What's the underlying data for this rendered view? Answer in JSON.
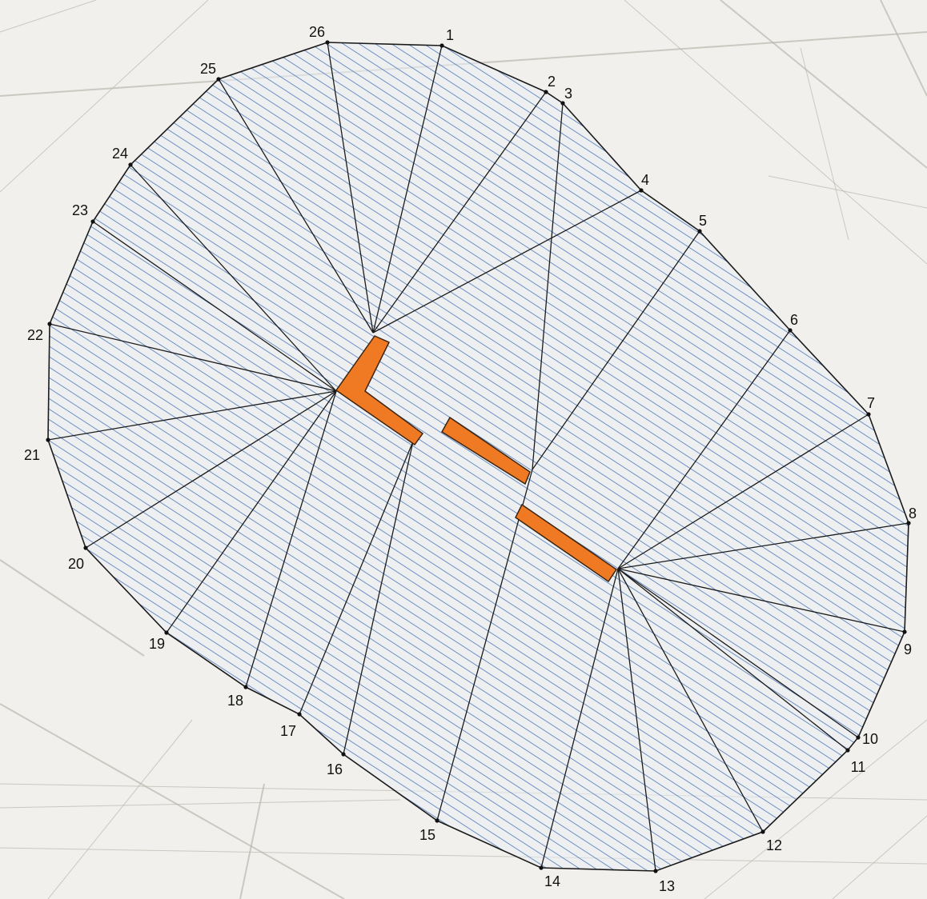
{
  "map": {
    "vertices": [
      {
        "id": "1",
        "label": "1"
      },
      {
        "id": "2",
        "label": "2"
      },
      {
        "id": "3",
        "label": "3"
      },
      {
        "id": "4",
        "label": "4"
      },
      {
        "id": "5",
        "label": "5"
      },
      {
        "id": "6",
        "label": "6"
      },
      {
        "id": "7",
        "label": "7"
      },
      {
        "id": "8",
        "label": "8"
      },
      {
        "id": "9",
        "label": "9"
      },
      {
        "id": "10",
        "label": "10"
      },
      {
        "id": "11",
        "label": "11"
      },
      {
        "id": "12",
        "label": "12"
      },
      {
        "id": "13",
        "label": "13"
      },
      {
        "id": "14",
        "label": "14"
      },
      {
        "id": "15",
        "label": "15"
      },
      {
        "id": "16",
        "label": "16"
      },
      {
        "id": "17",
        "label": "17"
      },
      {
        "id": "18",
        "label": "18"
      },
      {
        "id": "19",
        "label": "19"
      },
      {
        "id": "20",
        "label": "20"
      },
      {
        "id": "21",
        "label": "21"
      },
      {
        "id": "22",
        "label": "22"
      },
      {
        "id": "23",
        "label": "23"
      },
      {
        "id": "24",
        "label": "24"
      },
      {
        "id": "25",
        "label": "25"
      },
      {
        "id": "26",
        "label": "26"
      }
    ],
    "colors": {
      "background": "#f1f0ec",
      "basemap_lines": "#b9b6ae",
      "hatch": "#4f78b8",
      "region_fill": "#e9eef6",
      "boundary": "#1b1b1b",
      "rays": "#1b1b1b",
      "building": "#f07a24",
      "building_outline": "#3a2410",
      "label": "#111111"
    }
  }
}
